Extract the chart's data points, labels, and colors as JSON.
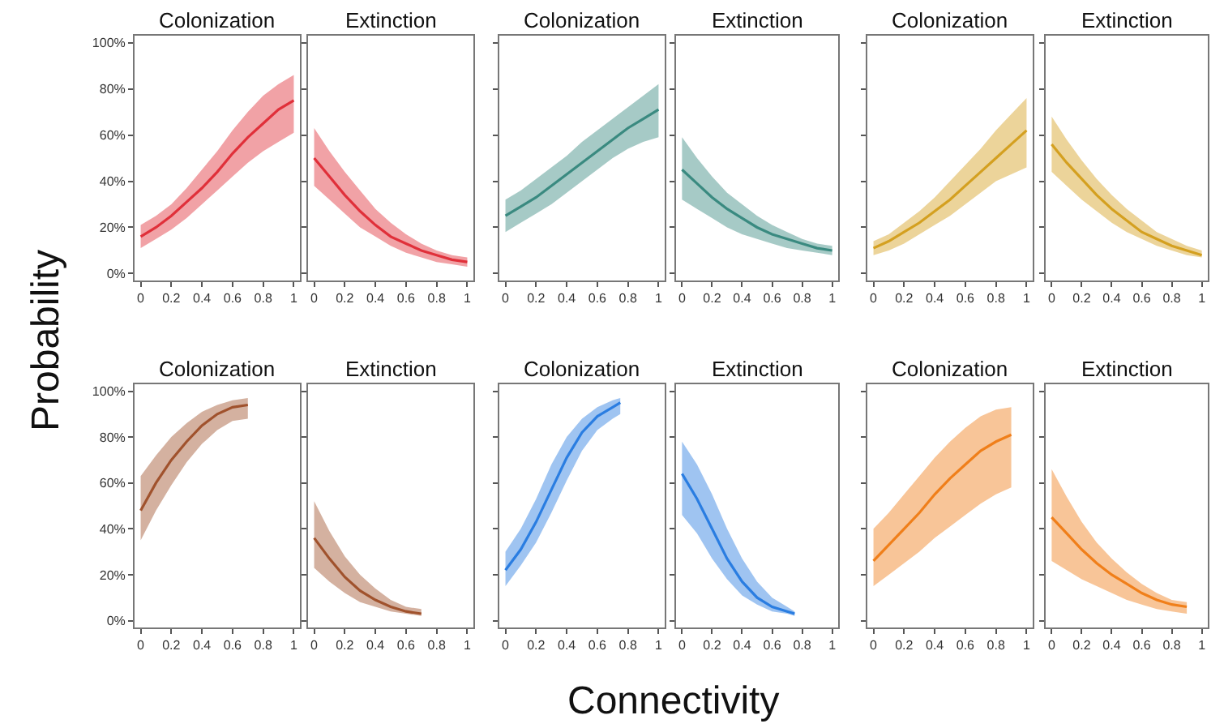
{
  "chart_data": [
    {
      "type": "line",
      "title": "Colonization",
      "ylabel": "Probability",
      "x": [
        0,
        0.1,
        0.2,
        0.3,
        0.4,
        0.5,
        0.6,
        0.7,
        0.8,
        0.9,
        1
      ],
      "xlim": [
        -0.04,
        1.04
      ],
      "ylim": [
        -3,
        103
      ],
      "xticks": [
        0,
        0.2,
        0.4,
        0.6,
        0.8,
        1
      ],
      "yticks": [
        {
          "value": 0,
          "label": "0%"
        },
        {
          "value": 20,
          "label": "20%"
        },
        {
          "value": 40,
          "label": "40%"
        },
        {
          "value": 60,
          "label": "60%"
        },
        {
          "value": 80,
          "label": "80%"
        },
        {
          "value": 100,
          "label": "100%"
        }
      ],
      "series": [
        {
          "color": "#e0303a",
          "values": [
            16,
            20,
            25,
            31,
            37,
            44,
            52,
            59,
            65,
            71,
            75
          ],
          "lower": [
            11,
            15,
            19,
            24,
            30,
            36,
            42,
            48,
            53,
            57,
            61
          ],
          "upper": [
            21,
            25,
            30,
            37,
            45,
            53,
            62,
            70,
            77,
            82,
            86
          ]
        }
      ]
    },
    {
      "type": "line",
      "title": "Extinction",
      "x": [
        0,
        0.1,
        0.2,
        0.3,
        0.4,
        0.5,
        0.6,
        0.7,
        0.8,
        0.9,
        1
      ],
      "xlim": [
        -0.04,
        1.04
      ],
      "ylim": [
        -3,
        103
      ],
      "xticks": [
        0,
        0.2,
        0.4,
        0.6,
        0.8,
        1
      ],
      "yticks": [
        {
          "value": 0,
          "label": null
        },
        {
          "value": 20,
          "label": null
        },
        {
          "value": 40,
          "label": null
        },
        {
          "value": 60,
          "label": null
        },
        {
          "value": 80,
          "label": null
        },
        {
          "value": 100,
          "label": null
        }
      ],
      "tick_labels": "x",
      "series": [
        {
          "color": "#e0303a",
          "values": [
            50,
            42,
            34,
            27,
            21,
            16,
            13,
            10,
            8,
            6,
            5
          ],
          "lower": [
            38,
            32,
            26,
            20,
            16,
            12,
            9,
            7,
            5,
            4,
            3
          ],
          "upper": [
            63,
            53,
            44,
            36,
            28,
            22,
            17,
            13,
            10,
            8,
            7
          ]
        }
      ]
    },
    {
      "type": "line",
      "title": "Colonization",
      "x": [
        0,
        0.1,
        0.2,
        0.3,
        0.4,
        0.5,
        0.6,
        0.7,
        0.8,
        0.9,
        1
      ],
      "xlim": [
        -0.04,
        1.04
      ],
      "ylim": [
        -3,
        103
      ],
      "xticks": [
        0,
        0.2,
        0.4,
        0.6,
        0.8,
        1
      ],
      "yticks": [
        {
          "value": 0,
          "label": null
        },
        {
          "value": 20,
          "label": null
        },
        {
          "value": 40,
          "label": null
        },
        {
          "value": 60,
          "label": null
        },
        {
          "value": 80,
          "label": null
        },
        {
          "value": 100,
          "label": null
        }
      ],
      "tick_labels": "x",
      "series": [
        {
          "color": "#3a8a80",
          "values": [
            25,
            29,
            33,
            38,
            43,
            48,
            53,
            58,
            63,
            67,
            71
          ],
          "lower": [
            18,
            22,
            26,
            30,
            35,
            40,
            45,
            50,
            54,
            57,
            59
          ],
          "upper": [
            32,
            36,
            41,
            46,
            51,
            57,
            62,
            67,
            72,
            77,
            82
          ]
        }
      ]
    },
    {
      "type": "line",
      "title": "Extinction",
      "x": [
        0,
        0.1,
        0.2,
        0.3,
        0.4,
        0.5,
        0.6,
        0.7,
        0.8,
        0.9,
        1
      ],
      "xlim": [
        -0.04,
        1.04
      ],
      "ylim": [
        -3,
        103
      ],
      "xticks": [
        0,
        0.2,
        0.4,
        0.6,
        0.8,
        1
      ],
      "yticks": [
        {
          "value": 0,
          "label": null
        },
        {
          "value": 20,
          "label": null
        },
        {
          "value": 40,
          "label": null
        },
        {
          "value": 60,
          "label": null
        },
        {
          "value": 80,
          "label": null
        },
        {
          "value": 100,
          "label": null
        }
      ],
      "tick_labels": "x",
      "series": [
        {
          "color": "#3a8a80",
          "values": [
            45,
            39,
            33,
            28,
            24,
            20,
            17,
            15,
            13,
            11,
            10
          ],
          "lower": [
            32,
            28,
            24,
            20,
            17,
            15,
            13,
            11,
            10,
            9,
            8
          ],
          "upper": [
            59,
            50,
            42,
            35,
            30,
            25,
            21,
            18,
            15,
            13,
            12
          ]
        }
      ]
    },
    {
      "type": "line",
      "title": "Colonization",
      "x": [
        0,
        0.1,
        0.2,
        0.3,
        0.4,
        0.5,
        0.6,
        0.7,
        0.8,
        0.9,
        1
      ],
      "xlim": [
        -0.04,
        1.04
      ],
      "ylim": [
        -3,
        103
      ],
      "xticks": [
        0,
        0.2,
        0.4,
        0.6,
        0.8,
        1
      ],
      "yticks": [
        {
          "value": 0,
          "label": null
        },
        {
          "value": 20,
          "label": null
        },
        {
          "value": 40,
          "label": null
        },
        {
          "value": 60,
          "label": null
        },
        {
          "value": 80,
          "label": null
        },
        {
          "value": 100,
          "label": null
        }
      ],
      "tick_labels": "x",
      "series": [
        {
          "color": "#d4a020",
          "values": [
            11,
            14,
            18,
            22,
            27,
            32,
            38,
            44,
            50,
            56,
            62
          ],
          "lower": [
            8,
            10,
            13,
            17,
            21,
            25,
            30,
            35,
            40,
            43,
            46
          ],
          "upper": [
            14,
            17,
            22,
            27,
            33,
            40,
            47,
            54,
            62,
            69,
            76
          ]
        }
      ]
    },
    {
      "type": "line",
      "title": "Extinction",
      "x": [
        0,
        0.1,
        0.2,
        0.3,
        0.4,
        0.5,
        0.6,
        0.7,
        0.8,
        0.9,
        1
      ],
      "xlim": [
        -0.04,
        1.04
      ],
      "ylim": [
        -3,
        103
      ],
      "xticks": [
        0,
        0.2,
        0.4,
        0.6,
        0.8,
        1
      ],
      "yticks": [
        {
          "value": 0,
          "label": null
        },
        {
          "value": 20,
          "label": null
        },
        {
          "value": 40,
          "label": null
        },
        {
          "value": 60,
          "label": null
        },
        {
          "value": 80,
          "label": null
        },
        {
          "value": 100,
          "label": null
        }
      ],
      "tick_labels": "x",
      "series": [
        {
          "color": "#d4a020",
          "values": [
            56,
            48,
            41,
            34,
            28,
            23,
            18,
            15,
            12,
            10,
            8
          ],
          "lower": [
            44,
            38,
            32,
            27,
            22,
            18,
            15,
            12,
            10,
            8,
            7
          ],
          "upper": [
            68,
            58,
            49,
            41,
            34,
            28,
            23,
            18,
            15,
            12,
            10
          ]
        }
      ]
    },
    {
      "type": "line",
      "title": "Colonization",
      "x": [
        0,
        0.1,
        0.2,
        0.3,
        0.4,
        0.5,
        0.6,
        0.7
      ],
      "xlim": [
        -0.04,
        1.04
      ],
      "ylim": [
        -3,
        103
      ],
      "xticks": [
        0,
        0.2,
        0.4,
        0.6,
        0.8,
        1
      ],
      "yticks": [
        {
          "value": 0,
          "label": "0%"
        },
        {
          "value": 20,
          "label": "20%"
        },
        {
          "value": 40,
          "label": "40%"
        },
        {
          "value": 60,
          "label": "60%"
        },
        {
          "value": 80,
          "label": "80%"
        },
        {
          "value": 100,
          "label": "100%"
        }
      ],
      "series": [
        {
          "color": "#a0522d",
          "values": [
            48,
            60,
            70,
            78,
            85,
            90,
            93,
            94
          ],
          "lower": [
            35,
            48,
            59,
            69,
            77,
            83,
            87,
            88
          ],
          "upper": [
            63,
            72,
            80,
            86,
            91,
            94,
            96,
            97
          ]
        }
      ]
    },
    {
      "type": "line",
      "title": "Extinction",
      "x": [
        0,
        0.1,
        0.2,
        0.3,
        0.4,
        0.5,
        0.6,
        0.7
      ],
      "xlim": [
        -0.04,
        1.04
      ],
      "ylim": [
        -3,
        103
      ],
      "xticks": [
        0,
        0.2,
        0.4,
        0.6,
        0.8,
        1
      ],
      "yticks": [
        {
          "value": 0,
          "label": null
        },
        {
          "value": 20,
          "label": null
        },
        {
          "value": 40,
          "label": null
        },
        {
          "value": 60,
          "label": null
        },
        {
          "value": 80,
          "label": null
        },
        {
          "value": 100,
          "label": null
        }
      ],
      "tick_labels": "x",
      "series": [
        {
          "color": "#a0522d",
          "values": [
            36,
            27,
            19,
            13,
            9,
            6,
            4,
            3
          ],
          "lower": [
            23,
            17,
            12,
            8,
            6,
            4,
            3,
            2
          ],
          "upper": [
            52,
            39,
            28,
            20,
            14,
            9,
            6,
            5
          ]
        }
      ]
    },
    {
      "type": "line",
      "title": "Colonization",
      "xlabel": "Connectivity",
      "x": [
        0,
        0.1,
        0.2,
        0.3,
        0.4,
        0.5,
        0.6,
        0.7,
        0.75
      ],
      "xlim": [
        -0.04,
        1.04
      ],
      "ylim": [
        -3,
        103
      ],
      "xticks": [
        0,
        0.2,
        0.4,
        0.6,
        0.8,
        1
      ],
      "yticks": [
        {
          "value": 0,
          "label": null
        },
        {
          "value": 20,
          "label": null
        },
        {
          "value": 40,
          "label": null
        },
        {
          "value": 60,
          "label": null
        },
        {
          "value": 80,
          "label": null
        },
        {
          "value": 100,
          "label": null
        }
      ],
      "tick_labels": "x",
      "series": [
        {
          "color": "#2a7de1",
          "values": [
            22,
            31,
            43,
            57,
            71,
            82,
            89,
            93,
            95
          ],
          "lower": [
            15,
            24,
            34,
            47,
            61,
            74,
            83,
            88,
            90
          ],
          "upper": [
            30,
            40,
            53,
            68,
            80,
            88,
            93,
            96,
            97
          ]
        }
      ]
    },
    {
      "type": "line",
      "title": "Extinction",
      "x": [
        0,
        0.1,
        0.2,
        0.3,
        0.4,
        0.5,
        0.6,
        0.7,
        0.75
      ],
      "xlim": [
        -0.04,
        1.04
      ],
      "ylim": [
        -3,
        103
      ],
      "xticks": [
        0,
        0.2,
        0.4,
        0.6,
        0.8,
        1
      ],
      "yticks": [
        {
          "value": 0,
          "label": null
        },
        {
          "value": 20,
          "label": null
        },
        {
          "value": 40,
          "label": null
        },
        {
          "value": 60,
          "label": null
        },
        {
          "value": 80,
          "label": null
        },
        {
          "value": 100,
          "label": null
        }
      ],
      "tick_labels": "x",
      "series": [
        {
          "color": "#2a7de1",
          "values": [
            64,
            53,
            40,
            27,
            17,
            10,
            6,
            4,
            3
          ],
          "lower": [
            46,
            38,
            27,
            18,
            11,
            7,
            4,
            3,
            2
          ],
          "upper": [
            78,
            68,
            55,
            40,
            27,
            17,
            10,
            6,
            4
          ]
        }
      ]
    },
    {
      "type": "line",
      "title": "Colonization",
      "x": [
        0,
        0.1,
        0.2,
        0.3,
        0.4,
        0.5,
        0.6,
        0.7,
        0.8,
        0.9
      ],
      "xlim": [
        -0.04,
        1.04
      ],
      "ylim": [
        -3,
        103
      ],
      "xticks": [
        0,
        0.2,
        0.4,
        0.6,
        0.8,
        1
      ],
      "yticks": [
        {
          "value": 0,
          "label": null
        },
        {
          "value": 20,
          "label": null
        },
        {
          "value": 40,
          "label": null
        },
        {
          "value": 60,
          "label": null
        },
        {
          "value": 80,
          "label": null
        },
        {
          "value": 100,
          "label": null
        }
      ],
      "tick_labels": "x",
      "series": [
        {
          "color": "#f07f1a",
          "values": [
            26,
            33,
            40,
            47,
            55,
            62,
            68,
            74,
            78,
            81
          ],
          "lower": [
            15,
            20,
            25,
            30,
            36,
            41,
            46,
            51,
            55,
            58
          ],
          "upper": [
            40,
            47,
            55,
            63,
            71,
            78,
            84,
            89,
            92,
            93
          ]
        }
      ]
    },
    {
      "type": "line",
      "title": "Extinction",
      "x": [
        0,
        0.1,
        0.2,
        0.3,
        0.4,
        0.5,
        0.6,
        0.7,
        0.8,
        0.9
      ],
      "xlim": [
        -0.04,
        1.04
      ],
      "ylim": [
        -3,
        103
      ],
      "xticks": [
        0,
        0.2,
        0.4,
        0.6,
        0.8,
        1
      ],
      "yticks": [
        {
          "value": 0,
          "label": null
        },
        {
          "value": 20,
          "label": null
        },
        {
          "value": 40,
          "label": null
        },
        {
          "value": 60,
          "label": null
        },
        {
          "value": 80,
          "label": null
        },
        {
          "value": 100,
          "label": null
        }
      ],
      "tick_labels": "x",
      "series": [
        {
          "color": "#f07f1a",
          "values": [
            45,
            38,
            31,
            25,
            20,
            16,
            12,
            9,
            7,
            6
          ],
          "lower": [
            26,
            22,
            18,
            15,
            12,
            9,
            7,
            5,
            4,
            3
          ],
          "upper": [
            66,
            54,
            43,
            34,
            27,
            21,
            16,
            12,
            9,
            8
          ]
        }
      ]
    }
  ]
}
